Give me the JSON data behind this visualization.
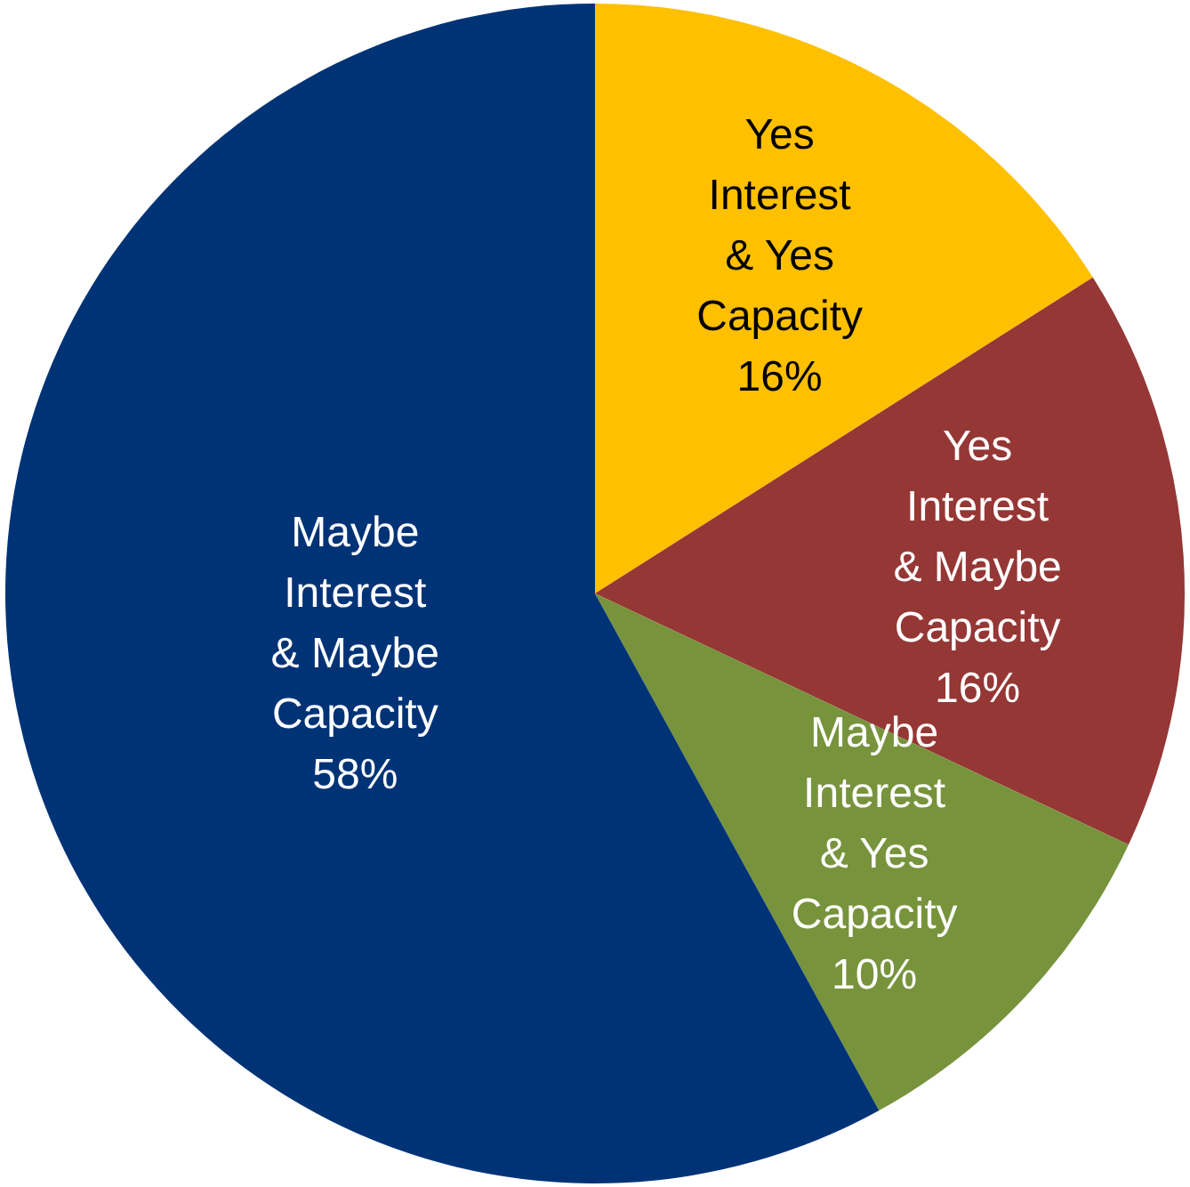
{
  "chart_data": {
    "type": "pie",
    "categories": [
      "Yes\nInterest\n& Yes\nCapacity",
      "Yes\nInterest\n& Maybe\nCapacity",
      "Maybe\nInterest\n& Yes\nCapacity",
      "Maybe\nInterest\n& Maybe\nCapacity"
    ],
    "values": [
      16,
      16,
      10,
      58
    ],
    "colors": [
      "#ffc000",
      "#953735",
      "#77933c",
      "#003376"
    ],
    "value_labels": [
      "16%",
      "16%",
      "10%",
      "58%"
    ],
    "legend": false
  }
}
